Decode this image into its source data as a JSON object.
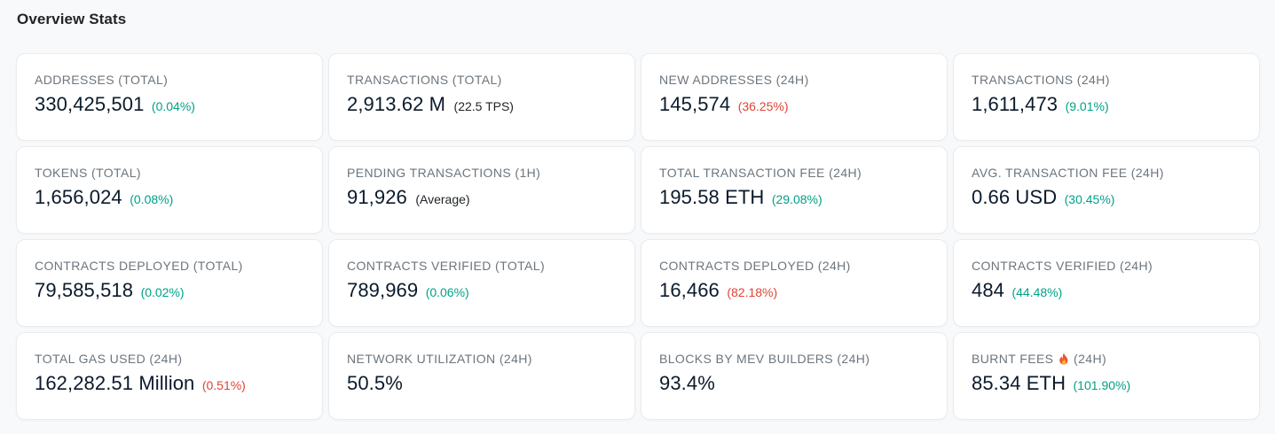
{
  "section_title": "Overview Stats",
  "colors": {
    "positive": "#00a186",
    "negative": "#de4437"
  },
  "cards": [
    {
      "label": "ADDRESSES (TOTAL)",
      "value": "330,425,501",
      "change": "(0.04%)",
      "change_dir": "up",
      "extra": ""
    },
    {
      "label": "TRANSACTIONS (TOTAL)",
      "value": "2,913.62 M",
      "change": "",
      "change_dir": "",
      "extra": "(22.5 TPS)"
    },
    {
      "label": "NEW ADDRESSES (24H)",
      "value": "145,574",
      "change": "(36.25%)",
      "change_dir": "down",
      "extra": ""
    },
    {
      "label": "TRANSACTIONS (24H)",
      "value": "1,611,473",
      "change": "(9.01%)",
      "change_dir": "up",
      "extra": ""
    },
    {
      "label": "TOKENS (TOTAL)",
      "value": "1,656,024",
      "change": "(0.08%)",
      "change_dir": "up",
      "extra": ""
    },
    {
      "label": "PENDING TRANSACTIONS (1H)",
      "value": "91,926",
      "change": "",
      "change_dir": "",
      "extra": "(Average)"
    },
    {
      "label": "TOTAL TRANSACTION FEE (24H)",
      "value": "195.58 ETH",
      "change": "(29.08%)",
      "change_dir": "up",
      "extra": ""
    },
    {
      "label": "AVG. TRANSACTION FEE (24H)",
      "value": "0.66 USD",
      "change": "(30.45%)",
      "change_dir": "up",
      "extra": ""
    },
    {
      "label": "CONTRACTS DEPLOYED (TOTAL)",
      "value": "79,585,518",
      "change": "(0.02%)",
      "change_dir": "up",
      "extra": ""
    },
    {
      "label": "CONTRACTS VERIFIED (TOTAL)",
      "value": "789,969",
      "change": "(0.06%)",
      "change_dir": "up",
      "extra": ""
    },
    {
      "label": "CONTRACTS DEPLOYED (24H)",
      "value": "16,466",
      "change": "(82.18%)",
      "change_dir": "down",
      "extra": ""
    },
    {
      "label": "CONTRACTS VERIFIED (24H)",
      "value": "484",
      "change": "(44.48%)",
      "change_dir": "up",
      "extra": ""
    },
    {
      "label": "TOTAL GAS USED (24H)",
      "value": "162,282.51 Million",
      "change": "(0.51%)",
      "change_dir": "down",
      "extra": ""
    },
    {
      "label": "NETWORK UTILIZATION (24H)",
      "value": "50.5%",
      "change": "",
      "change_dir": "",
      "extra": ""
    },
    {
      "label": "BLOCKS BY MEV BUILDERS (24H)",
      "value": "93.4%",
      "change": "",
      "change_dir": "",
      "extra": ""
    },
    {
      "label_before_icon": "BURNT FEES",
      "icon": "fire-icon",
      "label_after_icon": "(24H)",
      "value": "85.34 ETH",
      "change": "(101.90%)",
      "change_dir": "up",
      "extra": ""
    }
  ]
}
